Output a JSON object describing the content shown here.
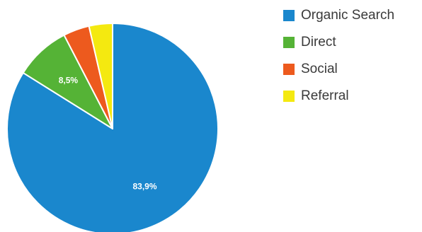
{
  "chart_data": {
    "type": "pie",
    "title": "",
    "start_angle_deg": 0,
    "direction": "clockwise",
    "legend_position": "right",
    "slices": [
      {
        "name": "Organic Search",
        "value": 83.9,
        "color": "#1a87cd",
        "label": "83,9%"
      },
      {
        "name": "Direct",
        "value": 8.5,
        "color": "#55b336",
        "label": "8,5%"
      },
      {
        "name": "Social",
        "value": 4.0,
        "color": "#ed5a1e",
        "label": ""
      },
      {
        "name": "Referral",
        "value": 3.6,
        "color": "#f4e910",
        "label": ""
      }
    ]
  }
}
